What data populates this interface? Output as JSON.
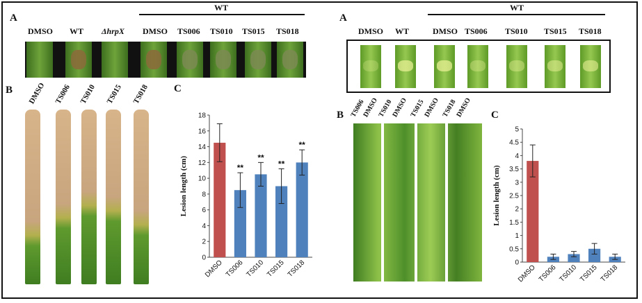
{
  "panel_left": {
    "label_a": "A",
    "label_b": "B",
    "label_c": "C",
    "a_header_group": "WT",
    "a_columns": [
      "DMSO",
      "WT",
      "ΔhrpX",
      "DMSO",
      "TS006",
      "TS010",
      "TS015",
      "TS018"
    ],
    "b_columns": [
      "DMSO",
      "TS006",
      "TS010",
      "TS015",
      "TS018"
    ]
  },
  "panel_right": {
    "label_a": "A",
    "label_b": "B",
    "label_c": "C",
    "a_header_group": "WT",
    "a_columns": [
      "DMSO",
      "WT",
      "DMSO",
      "TS006",
      "TS010",
      "TS015",
      "TS018"
    ],
    "b_columns": [
      "TS006",
      "DMSO",
      "TS010",
      "DMSO",
      "TS015",
      "DMSO",
      "TS018",
      "DMSO"
    ]
  },
  "colors": {
    "control": "#c0504d",
    "treated": "#4f81bd",
    "leaf_green": "#5f9a2e",
    "lesion_tan": "#c8a57e"
  },
  "chart_data": [
    {
      "type": "bar",
      "categories": [
        "DMSO",
        "TS006",
        "TS010",
        "TS015",
        "TS018"
      ],
      "values": [
        14.5,
        8.5,
        10.5,
        9.0,
        12.0
      ],
      "errors": [
        2.4,
        2.2,
        1.5,
        2.2,
        1.6
      ],
      "annotations": [
        "",
        "**",
        "**",
        "**",
        "**"
      ],
      "ylabel": "Lesion length (cm)",
      "ylim": [
        0,
        18
      ],
      "yticks": [
        "0",
        "2",
        "4",
        "6",
        "8",
        "10",
        "12",
        "14",
        "16",
        "18"
      ],
      "grid": false
    },
    {
      "type": "bar",
      "categories": [
        "DMSO",
        "TS006",
        "TS010",
        "TS015",
        "TS018"
      ],
      "values": [
        3.8,
        0.2,
        0.3,
        0.5,
        0.2
      ],
      "errors": [
        0.6,
        0.1,
        0.1,
        0.2,
        0.1
      ],
      "annotations": [
        "",
        "",
        "",
        "",
        ""
      ],
      "ylabel": "Lesion length (cm)",
      "ylim": [
        0,
        5
      ],
      "yticks": [
        "0",
        "0.5",
        "1",
        "1.5",
        "2",
        "2.5",
        "3",
        "3.5",
        "4",
        "4.5",
        "5"
      ],
      "grid": false
    }
  ]
}
